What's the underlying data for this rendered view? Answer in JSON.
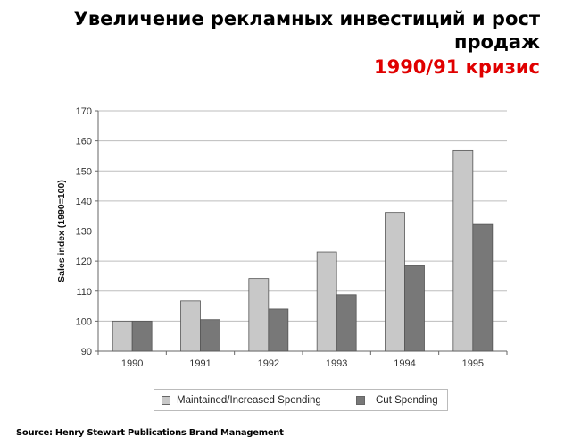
{
  "header": {
    "title_line1": "Увеличение рекламных инвестиций и рост",
    "title_line2": "продаж",
    "subtitle": "1990/91 кризис"
  },
  "colors": {
    "maintained": "#c8c8c8",
    "cut": "#787878",
    "subtitle": "#e00000"
  },
  "chart_data": {
    "type": "bar",
    "title": "",
    "xlabel": "",
    "ylabel": "Sales index (1990=100)",
    "ylim": [
      90,
      170
    ],
    "yticks": [
      90,
      100,
      110,
      120,
      130,
      140,
      150,
      160,
      170
    ],
    "grid": true,
    "legend_position": "bottom",
    "categories": [
      "1990",
      "1991",
      "1992",
      "1993",
      "1994",
      "1995"
    ],
    "series": [
      {
        "name": "Maintained/Increased Spending",
        "values": [
          100,
          106.7,
          114.2,
          123,
          136.2,
          156.8
        ]
      },
      {
        "name": "Cut Spending",
        "values": [
          100,
          100.5,
          104,
          108.8,
          118.5,
          132.2
        ]
      }
    ]
  },
  "source": "Source: Henry Stewart Publications Brand Management"
}
